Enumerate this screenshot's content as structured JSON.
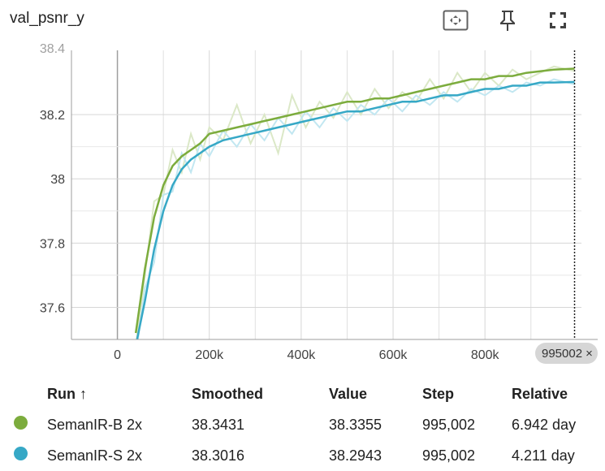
{
  "title": "val_psnr_y",
  "toolbar": {
    "fit_icon": "fit-to-data-icon",
    "pin_icon": "pin-icon",
    "fullscreen_icon": "fullscreen-icon"
  },
  "step_chip": {
    "label": "995002",
    "close": "×"
  },
  "table": {
    "headers": {
      "run": "Run ↑",
      "smoothed": "Smoothed",
      "value": "Value",
      "step": "Step",
      "relative": "Relative"
    },
    "rows": [
      {
        "run": "SemanIR-B 2x",
        "smoothed": "38.3431",
        "value": "38.3355",
        "step": "995,002",
        "relative": "6.942 day",
        "color": "#7cac3d"
      },
      {
        "run": "SemanIR-S 2x",
        "smoothed": "38.3016",
        "value": "38.2943",
        "step": "995,002",
        "relative": "4.211 day",
        "color": "#36a8c6"
      }
    ]
  },
  "chart_data": {
    "type": "line",
    "title": "val_psnr_y",
    "xlabel": "",
    "ylabel": "",
    "xlim": [
      -100000,
      1010000
    ],
    "ylim": [
      37.5,
      38.4
    ],
    "x_ticks": [
      0,
      200000,
      400000,
      600000,
      800000
    ],
    "x_tick_labels": [
      "0",
      "200k",
      "400k",
      "600k",
      "800k"
    ],
    "y_ticks": [
      37.6,
      37.8,
      38,
      38.2
    ],
    "y_tick_labels": [
      "37.6",
      "37.8",
      "38",
      "38.2"
    ],
    "y_top_clipped_label": "38.4",
    "cursor_step": 995002,
    "grid": true,
    "series": [
      {
        "name": "SemanIR-B 2x",
        "color": "#7cac3d",
        "raw_color": "#dbe8c7",
        "x": [
          40000,
          60000,
          80000,
          100000,
          120000,
          140000,
          160000,
          180000,
          200000,
          230000,
          260000,
          290000,
          320000,
          350000,
          380000,
          410000,
          440000,
          470000,
          500000,
          530000,
          560000,
          590000,
          620000,
          650000,
          680000,
          710000,
          740000,
          770000,
          800000,
          830000,
          860000,
          890000,
          920000,
          950000,
          995002
        ],
        "smoothed": [
          37.52,
          37.72,
          37.88,
          37.98,
          38.04,
          38.07,
          38.09,
          38.11,
          38.14,
          38.15,
          38.16,
          38.17,
          38.18,
          38.19,
          38.2,
          38.21,
          38.22,
          38.23,
          38.24,
          38.24,
          38.25,
          38.25,
          38.26,
          38.27,
          38.28,
          38.29,
          38.3,
          38.31,
          38.31,
          38.32,
          38.32,
          38.33,
          38.335,
          38.34,
          38.3431
        ],
        "raw": [
          37.48,
          37.7,
          37.93,
          37.95,
          38.09,
          38.02,
          38.14,
          38.06,
          38.16,
          38.12,
          38.23,
          38.11,
          38.2,
          38.08,
          38.26,
          38.16,
          38.24,
          38.19,
          38.27,
          38.2,
          38.28,
          38.22,
          38.27,
          38.24,
          38.31,
          38.25,
          38.33,
          38.27,
          38.33,
          38.29,
          38.34,
          38.31,
          38.33,
          38.35,
          38.3355
        ]
      },
      {
        "name": "SemanIR-S 2x",
        "color": "#36a8c6",
        "raw_color": "#c2e7f1",
        "x": [
          40000,
          60000,
          80000,
          100000,
          120000,
          140000,
          160000,
          180000,
          200000,
          230000,
          260000,
          290000,
          320000,
          350000,
          380000,
          410000,
          440000,
          470000,
          500000,
          530000,
          560000,
          590000,
          620000,
          650000,
          680000,
          710000,
          740000,
          770000,
          800000,
          830000,
          860000,
          890000,
          920000,
          950000,
          995002
        ],
        "smoothed": [
          37.48,
          37.62,
          37.78,
          37.9,
          37.98,
          38.03,
          38.06,
          38.08,
          38.1,
          38.12,
          38.13,
          38.14,
          38.15,
          38.16,
          38.17,
          38.18,
          38.19,
          38.2,
          38.21,
          38.21,
          38.22,
          38.23,
          38.24,
          38.24,
          38.25,
          38.26,
          38.26,
          38.27,
          38.28,
          38.28,
          38.29,
          38.29,
          38.3,
          38.3,
          38.3016
        ],
        "raw": [
          37.45,
          37.66,
          37.74,
          37.95,
          37.96,
          38.08,
          38.02,
          38.11,
          38.07,
          38.15,
          38.1,
          38.17,
          38.12,
          38.19,
          38.14,
          38.21,
          38.16,
          38.22,
          38.18,
          38.23,
          38.2,
          38.25,
          38.21,
          38.26,
          38.23,
          38.27,
          38.24,
          38.28,
          38.26,
          38.29,
          38.27,
          38.3,
          38.29,
          38.31,
          38.2943
        ]
      }
    ]
  }
}
